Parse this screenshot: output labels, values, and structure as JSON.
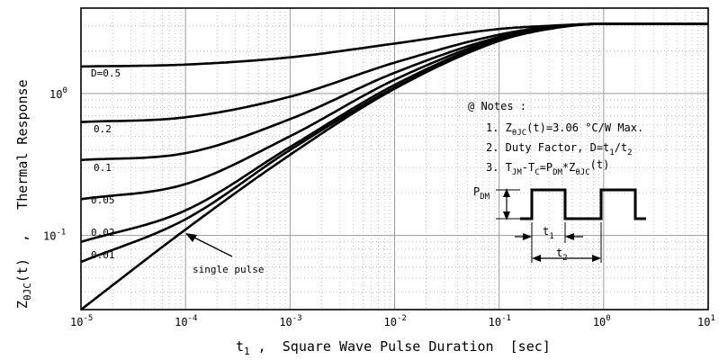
{
  "chart_data": {
    "type": "line",
    "x_scale": "log",
    "y_scale": "log",
    "xlim": [
      1e-05,
      10
    ],
    "ylim": [
      0.03,
      4
    ],
    "grid": true,
    "xlabel": {
      "main": "t",
      "sub": "1",
      "rest": " ,  Square Wave Pulse Duration  [sec]"
    },
    "ylabel": {
      "main": "Z",
      "sub": "θJC",
      "rest": "(t)  ,   Thermal Response"
    },
    "x_ticks": [
      {
        "value": 1e-05,
        "base": "10",
        "exp": "-5"
      },
      {
        "value": 0.0001,
        "base": "10",
        "exp": "-4"
      },
      {
        "value": 0.001,
        "base": "10",
        "exp": "-3"
      },
      {
        "value": 0.01,
        "base": "10",
        "exp": "-2"
      },
      {
        "value": 0.1,
        "base": "10",
        "exp": "-1"
      },
      {
        "value": 1,
        "base": "10",
        "exp": "0"
      },
      {
        "value": 10,
        "base": "10",
        "exp": "1"
      }
    ],
    "y_ticks": [
      {
        "value": 1,
        "base": "10",
        "exp": "0"
      },
      {
        "value": 0.1,
        "base": "10",
        "exp": "-1"
      }
    ],
    "series": [
      {
        "name": "D=0.5",
        "x": [
          1e-05,
          0.0001,
          0.001,
          0.01,
          0.1,
          0.3,
          1,
          10
        ],
        "y": [
          1.55,
          1.6,
          1.8,
          2.25,
          2.85,
          3.0,
          3.1,
          3.1
        ]
      },
      {
        "name": "0.2",
        "x": [
          1e-05,
          0.0001,
          0.001,
          0.01,
          0.1,
          0.3,
          1,
          10
        ],
        "y": [
          0.63,
          0.68,
          0.95,
          1.65,
          2.6,
          2.95,
          3.1,
          3.1
        ]
      },
      {
        "name": "0.1",
        "x": [
          1e-05,
          0.0001,
          0.001,
          0.01,
          0.1,
          0.3,
          1,
          10
        ],
        "y": [
          0.34,
          0.38,
          0.66,
          1.4,
          2.5,
          2.9,
          3.1,
          3.1
        ]
      },
      {
        "name": "0.05",
        "x": [
          1e-05,
          0.0001,
          0.001,
          0.01,
          0.1,
          0.3,
          1,
          10
        ],
        "y": [
          0.18,
          0.23,
          0.5,
          1.25,
          2.45,
          2.9,
          3.1,
          3.1
        ]
      },
      {
        "name": "0.02",
        "x": [
          1e-05,
          0.0001,
          0.001,
          0.01,
          0.1,
          0.3,
          1,
          10
        ],
        "y": [
          0.09,
          0.15,
          0.42,
          1.15,
          2.4,
          2.88,
          3.1,
          3.1
        ]
      },
      {
        "name": "0.01",
        "x": [
          1e-05,
          0.0001,
          0.001,
          0.01,
          0.1,
          0.3,
          1,
          10
        ],
        "y": [
          0.065,
          0.13,
          0.4,
          1.1,
          2.38,
          2.87,
          3.1,
          3.1
        ]
      },
      {
        "name": "single pulse",
        "x": [
          1e-05,
          0.0001,
          0.001,
          0.01,
          0.1,
          0.3,
          1,
          10
        ],
        "y": [
          0.03,
          0.11,
          0.37,
          1.08,
          2.35,
          2.85,
          3.1,
          3.1
        ]
      }
    ],
    "notes": {
      "heading": "@ Notes :",
      "line1": {
        "prefix": "1. Z",
        "sub": "θJC",
        "rest": "(t)=3.06 °C/W Max."
      },
      "line2": {
        "prefix": "2. Duty Factor, D=t",
        "sub1": "1",
        "mid": "/t",
        "sub2": "2"
      },
      "line3": {
        "prefix": "3. T",
        "sub1": "JM",
        "a": "-T",
        "sub2": "C",
        "b": "=P",
        "sub3": "DM",
        "c": "*Z",
        "sub4": "θJC",
        "d": "(t)"
      }
    },
    "pulse_diagram": {
      "pdm": {
        "main": "P",
        "sub": "DM"
      },
      "t1": {
        "main": "t",
        "sub": "1"
      },
      "t2": {
        "main": "t",
        "sub": "2"
      }
    }
  }
}
